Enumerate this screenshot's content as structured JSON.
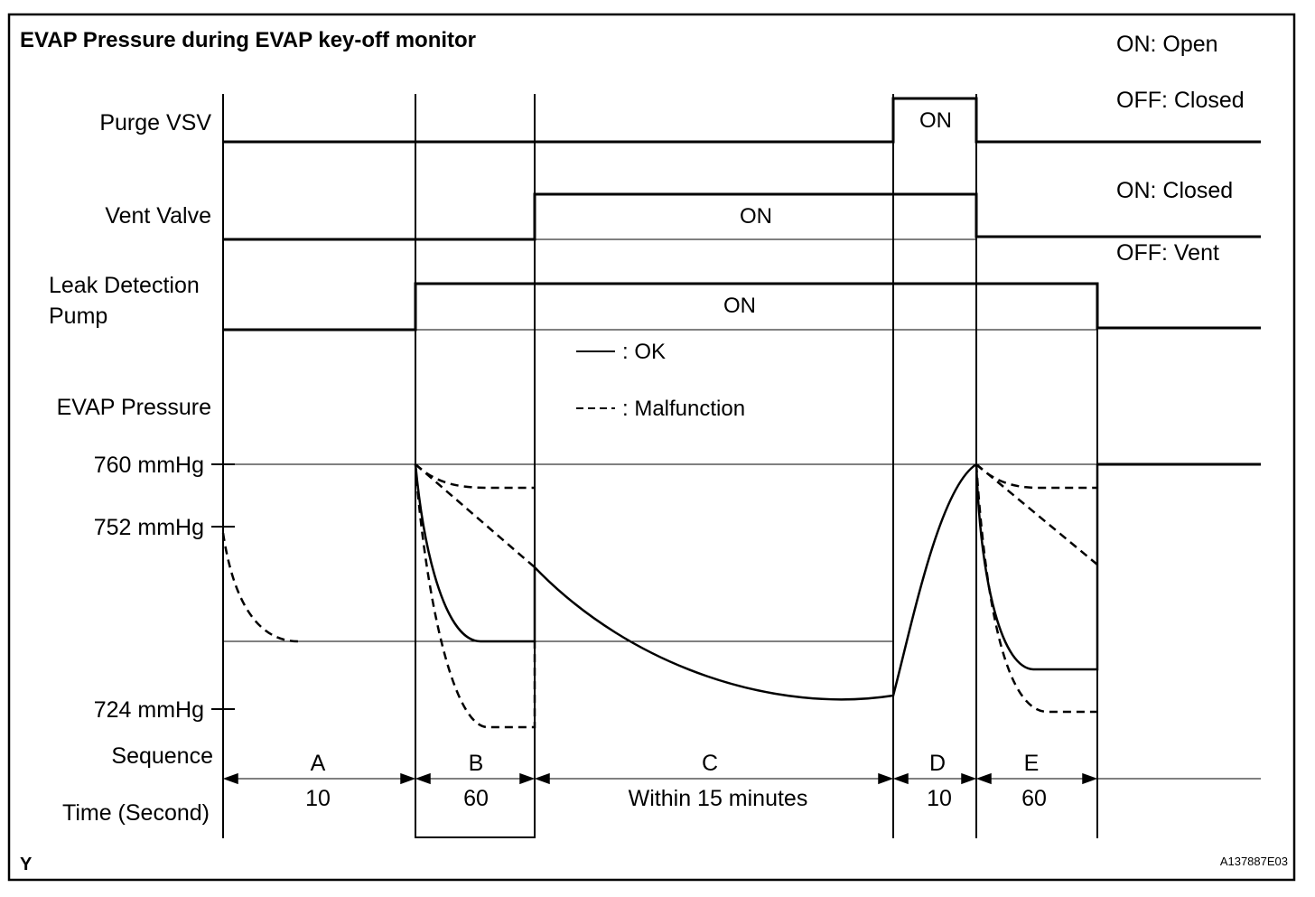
{
  "title": "EVAP Pressure during EVAP key-off monitor",
  "purge_notes": {
    "on": "ON: Open",
    "off": "OFF: Closed"
  },
  "vent_notes": {
    "on": "ON: Closed",
    "off": "OFF: Vent"
  },
  "signals": {
    "purge_vsv": {
      "label": "Purge VSV",
      "on_text": "ON"
    },
    "vent_valve": {
      "label": "Vent Valve",
      "on_text": "ON"
    },
    "leak_pump": {
      "label_line1": "Leak Detection",
      "label_line2": "Pump",
      "on_text": "ON"
    }
  },
  "pressure": {
    "label": "EVAP Pressure",
    "ticks": [
      "760 mmHg",
      "752 mmHg",
      "724 mmHg"
    ]
  },
  "legend": {
    "ok": ": OK",
    "malfunction": ": Malfunction"
  },
  "sequence": {
    "label": "Sequence",
    "time_label": "Time (Second)",
    "phases": [
      {
        "name": "A",
        "time": "10"
      },
      {
        "name": "B",
        "time": "60"
      },
      {
        "name": "C",
        "time": "Within 15 minutes"
      },
      {
        "name": "D",
        "time": "10"
      },
      {
        "name": "E",
        "time": "60"
      }
    ]
  },
  "corner_mark": "Y",
  "figure_id": "A137887E03"
}
